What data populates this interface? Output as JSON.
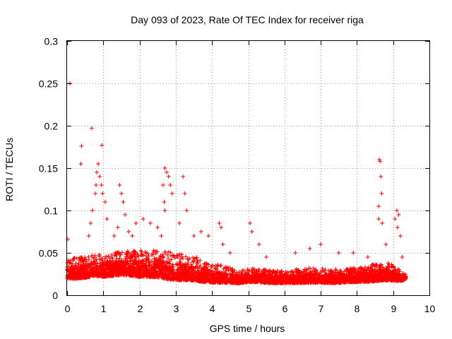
{
  "colors": {
    "point": "#ff0000",
    "grid": "#a0a0a0",
    "axis": "#000000",
    "background": "#ffffff"
  },
  "chart_data": {
    "type": "scatter",
    "title": "Day 093 of 2023, Rate Of TEC Index for receiver riga",
    "xlabel": "GPS time / hours",
    "ylabel": "ROTI / TECUs",
    "xlim": [
      0,
      10
    ],
    "ylim": [
      0,
      0.3
    ],
    "xticks": [
      "0",
      "1",
      "2",
      "3",
      "4",
      "5",
      "6",
      "7",
      "8",
      "9",
      "10"
    ],
    "yticks": [
      "0",
      "0.05",
      "0.1",
      "0.15",
      "0.2",
      "0.25",
      "0.3"
    ],
    "grid": true,
    "marker": "+",
    "series": [
      {
        "name": "ROTI",
        "points": [
          [
            0.02,
            0.066
          ],
          [
            0.08,
            0.25
          ],
          [
            0.4,
            0.176
          ],
          [
            0.38,
            0.155
          ],
          [
            0.68,
            0.197
          ],
          [
            0.96,
            0.177
          ],
          [
            0.86,
            0.155
          ],
          [
            0.82,
            0.145
          ],
          [
            0.9,
            0.14
          ],
          [
            0.78,
            0.12
          ],
          [
            0.8,
            0.13
          ],
          [
            0.95,
            0.13
          ],
          [
            0.98,
            0.12
          ],
          [
            1.05,
            0.11
          ],
          [
            1.1,
            0.09
          ],
          [
            0.7,
            0.1
          ],
          [
            0.65,
            0.085
          ],
          [
            0.6,
            0.07
          ],
          [
            1.45,
            0.13
          ],
          [
            1.5,
            0.12
          ],
          [
            1.55,
            0.11
          ],
          [
            1.6,
            0.095
          ],
          [
            1.3,
            0.07
          ],
          [
            1.4,
            0.08
          ],
          [
            1.7,
            0.075
          ],
          [
            1.8,
            0.07
          ],
          [
            1.9,
            0.085
          ],
          [
            2.1,
            0.09
          ],
          [
            2.3,
            0.085
          ],
          [
            2.5,
            0.08
          ],
          [
            2.6,
            0.07
          ],
          [
            2.7,
            0.15
          ],
          [
            2.75,
            0.145
          ],
          [
            2.8,
            0.14
          ],
          [
            2.85,
            0.13
          ],
          [
            2.9,
            0.12
          ],
          [
            2.65,
            0.13
          ],
          [
            2.7,
            0.1
          ],
          [
            2.68,
            0.11
          ],
          [
            3.2,
            0.14
          ],
          [
            3.25,
            0.12
          ],
          [
            3.3,
            0.1
          ],
          [
            3.1,
            0.085
          ],
          [
            3.5,
            0.07
          ],
          [
            3.7,
            0.075
          ],
          [
            3.9,
            0.07
          ],
          [
            4.2,
            0.085
          ],
          [
            4.25,
            0.08
          ],
          [
            4.3,
            0.06
          ],
          [
            4.5,
            0.05
          ],
          [
            5.05,
            0.085
          ],
          [
            5.1,
            0.075
          ],
          [
            5.3,
            0.06
          ],
          [
            5.5,
            0.045
          ],
          [
            6.3,
            0.05
          ],
          [
            6.7,
            0.055
          ],
          [
            7.0,
            0.06
          ],
          [
            7.5,
            0.05
          ],
          [
            7.9,
            0.05
          ],
          [
            8.3,
            0.045
          ],
          [
            8.6,
            0.105
          ],
          [
            8.62,
            0.16
          ],
          [
            8.64,
            0.158
          ],
          [
            8.66,
            0.14
          ],
          [
            8.68,
            0.12
          ],
          [
            8.6,
            0.09
          ],
          [
            8.7,
            0.085
          ],
          [
            8.8,
            0.06
          ],
          [
            9.05,
            0.09
          ],
          [
            9.1,
            0.1
          ],
          [
            9.15,
            0.095
          ],
          [
            9.12,
            0.08
          ],
          [
            9.2,
            0.07
          ],
          [
            9.25,
            0.045
          ],
          [
            9.3,
            0.02
          ]
        ]
      }
    ],
    "band": [
      [
        0.0,
        0.015,
        0.048
      ],
      [
        0.25,
        0.014,
        0.05
      ],
      [
        0.5,
        0.015,
        0.052
      ],
      [
        0.75,
        0.017,
        0.055
      ],
      [
        1.0,
        0.016,
        0.055
      ],
      [
        1.25,
        0.017,
        0.056
      ],
      [
        1.5,
        0.018,
        0.058
      ],
      [
        1.75,
        0.017,
        0.058
      ],
      [
        2.0,
        0.015,
        0.06
      ],
      [
        2.25,
        0.015,
        0.06
      ],
      [
        2.5,
        0.014,
        0.06
      ],
      [
        2.75,
        0.012,
        0.06
      ],
      [
        3.0,
        0.011,
        0.056
      ],
      [
        3.25,
        0.011,
        0.055
      ],
      [
        3.5,
        0.011,
        0.052
      ],
      [
        3.75,
        0.01,
        0.048
      ],
      [
        4.0,
        0.01,
        0.044
      ],
      [
        4.25,
        0.01,
        0.04
      ],
      [
        4.5,
        0.011,
        0.036
      ],
      [
        4.75,
        0.011,
        0.032
      ],
      [
        5.0,
        0.012,
        0.035
      ],
      [
        5.25,
        0.012,
        0.036
      ],
      [
        5.5,
        0.011,
        0.034
      ],
      [
        5.75,
        0.011,
        0.033
      ],
      [
        6.0,
        0.011,
        0.033
      ],
      [
        6.25,
        0.011,
        0.034
      ],
      [
        6.5,
        0.011,
        0.035
      ],
      [
        6.75,
        0.011,
        0.036
      ],
      [
        7.0,
        0.011,
        0.036
      ],
      [
        7.25,
        0.011,
        0.035
      ],
      [
        7.5,
        0.011,
        0.034
      ],
      [
        7.75,
        0.012,
        0.035
      ],
      [
        8.0,
        0.012,
        0.036
      ],
      [
        8.25,
        0.012,
        0.038
      ],
      [
        8.5,
        0.012,
        0.042
      ],
      [
        8.75,
        0.013,
        0.045
      ],
      [
        9.0,
        0.013,
        0.04
      ],
      [
        9.25,
        0.015,
        0.03
      ],
      [
        9.35,
        0.018,
        0.026
      ]
    ]
  }
}
